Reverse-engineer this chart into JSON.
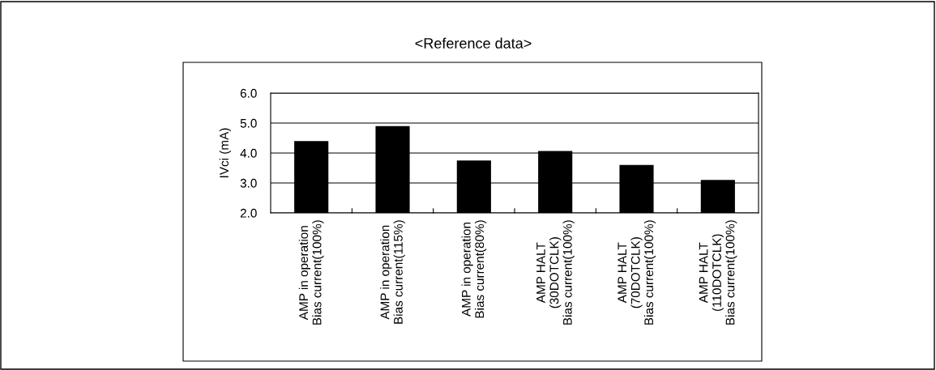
{
  "chart_data": {
    "type": "bar",
    "title": "<Reference data>",
    "ylabel": "IVci (mA)",
    "categories": [
      "AMP in operation\nBias current(100%)",
      "AMP in operation\nBias current(115%)",
      "AMP in operation\nBias current(80%)",
      "AMP HALT\n(30DOTCLK)\nBias current(100%)",
      "AMP HALT\n(70DOTCLK)\nBias current(100%)",
      "AMP HALT\n(110DOTCLK)\nBias current(100%)"
    ],
    "values": [
      4.4,
      4.9,
      3.75,
      4.07,
      3.6,
      3.1
    ],
    "color": "#000000",
    "ylim": [
      2.0,
      6.0
    ],
    "yticks": [
      {
        "value": 2.0,
        "label": "2.0"
      },
      {
        "value": 3.0,
        "label": "3.0"
      },
      {
        "value": 4.0,
        "label": "4.0"
      },
      {
        "value": 5.0,
        "label": "5.0"
      },
      {
        "value": 6.0,
        "label": "6.0"
      }
    ],
    "grid": "y",
    "legend": false
  }
}
